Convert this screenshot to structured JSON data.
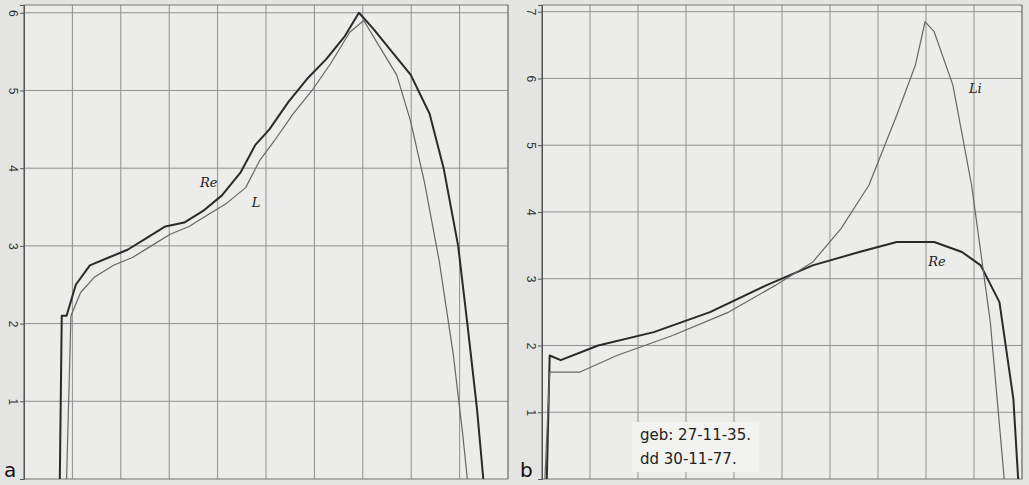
{
  "chart_data": [
    {
      "type": "line",
      "title": "a",
      "grid": true,
      "tick_labels": "y",
      "xlim": [
        0,
        100
      ],
      "xticks": [
        0,
        10,
        20,
        30,
        40,
        50,
        60,
        70,
        80,
        90,
        100
      ],
      "ylim": [
        0,
        6.1
      ],
      "yticks": [
        1,
        2,
        3,
        4,
        5,
        6
      ],
      "series": [
        {
          "name": "Re",
          "color": "#2a2a2a",
          "x": [
            7.4,
            7.8,
            8.8,
            10.7,
            13.6,
            17.5,
            21.4,
            25.3,
            29.2,
            33.1,
            37.0,
            40.9,
            44.8,
            47.8,
            50.7,
            54.6,
            58.5,
            62.4,
            66.3,
            69.2,
            72.1,
            76.0,
            79.9,
            83.8,
            86.7,
            89.7,
            91.6,
            93.6,
            94.9
          ],
          "values": [
            0,
            2.1,
            2.1,
            2.5,
            2.75,
            2.85,
            2.95,
            3.1,
            3.25,
            3.3,
            3.45,
            3.65,
            3.95,
            4.3,
            4.5,
            4.85,
            5.15,
            5.4,
            5.7,
            6.0,
            5.8,
            5.5,
            5.2,
            4.7,
            4.0,
            3.0,
            2.0,
            0.9,
            0
          ]
        },
        {
          "name": "L",
          "color": "#666666",
          "x": [
            8.8,
            9.7,
            11.7,
            14.6,
            18.5,
            22.4,
            26.3,
            30.2,
            34.1,
            38.0,
            41.9,
            45.8,
            48.7,
            51.7,
            55.6,
            59.5,
            63.4,
            67.3,
            70.2,
            73.1,
            77.0,
            79.9,
            82.8,
            85.8,
            88.7,
            90.6,
            91.6
          ],
          "values": [
            0,
            2.1,
            2.4,
            2.6,
            2.75,
            2.85,
            3.0,
            3.15,
            3.25,
            3.4,
            3.55,
            3.75,
            4.1,
            4.35,
            4.7,
            5.0,
            5.35,
            5.75,
            5.9,
            5.6,
            5.2,
            4.6,
            3.8,
            2.8,
            1.6,
            0.6,
            0
          ]
        }
      ]
    },
    {
      "type": "line",
      "title": "b",
      "grid": true,
      "tick_labels": "y",
      "xlim": [
        0,
        100
      ],
      "xticks": [
        0,
        10,
        20,
        30,
        40,
        50,
        60,
        70,
        80,
        90,
        100
      ],
      "ylim": [
        0,
        7.1
      ],
      "yticks": [
        1,
        2,
        3,
        4,
        5,
        6,
        7
      ],
      "annotations": [
        {
          "text": "geb: 27-11-35."
        },
        {
          "text": "dd 30-11-77."
        }
      ],
      "series": [
        {
          "name": "Re",
          "color": "#2a2a2a",
          "x": [
            1.0,
            1.6,
            3.9,
            11.7,
            23.3,
            35.0,
            46.7,
            56.4,
            66.1,
            73.9,
            81.7,
            87.5,
            91.4,
            95.3,
            98.2,
            99.2
          ],
          "values": [
            0,
            1.85,
            1.78,
            2.0,
            2.2,
            2.5,
            2.9,
            3.2,
            3.4,
            3.55,
            3.55,
            3.4,
            3.2,
            2.65,
            1.2,
            0
          ]
        },
        {
          "name": "Li",
          "color": "#666666",
          "x": [
            0.6,
            1.6,
            7.8,
            15.6,
            27.2,
            38.9,
            48.6,
            56.4,
            62.3,
            68.1,
            73.9,
            77.8,
            79.8,
            81.7,
            85.6,
            89.5,
            93.4,
            96.3
          ],
          "values": [
            0,
            1.6,
            1.6,
            1.85,
            2.15,
            2.5,
            2.9,
            3.25,
            3.75,
            4.4,
            5.45,
            6.2,
            6.85,
            6.7,
            5.9,
            4.4,
            2.35,
            0
          ]
        }
      ]
    }
  ]
}
